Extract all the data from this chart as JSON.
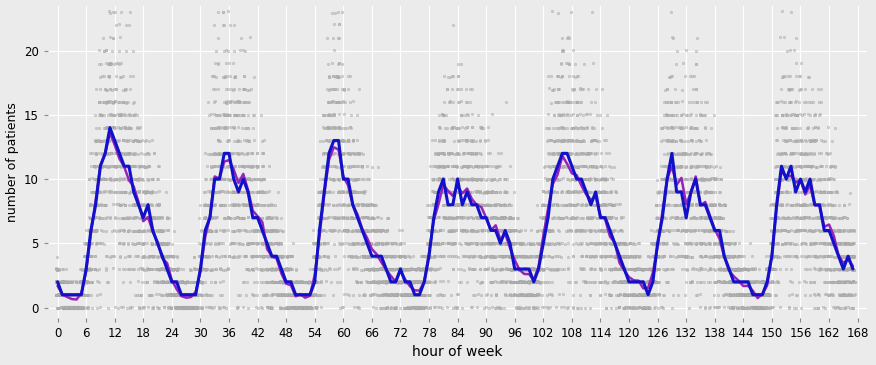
{
  "title": "",
  "xlabel": "hour of week",
  "ylabel": "number of patients",
  "xlim": [
    -2,
    170
  ],
  "ylim": [
    -0.8,
    23.5
  ],
  "yticks": [
    0,
    5,
    10,
    15,
    20
  ],
  "xticks": [
    0,
    6,
    12,
    18,
    24,
    30,
    36,
    42,
    48,
    54,
    60,
    66,
    72,
    78,
    84,
    90,
    96,
    102,
    108,
    114,
    120,
    126,
    132,
    138,
    144,
    150,
    156,
    162,
    168
  ],
  "background_color": "#EBEBEB",
  "grid_color": "#FFFFFF",
  "dot_color": "#BBBBBB",
  "dot_edge_color": "#999999",
  "median_color": "#1111CC",
  "mean_color": "#9922BB",
  "n_weeks": 65,
  "hours_per_week": 168,
  "seed": 42,
  "hourly_rates": [
    1.5,
    1.0,
    0.8,
    0.6,
    0.5,
    1.0,
    2.5,
    5.5,
    8.5,
    10.5,
    11.5,
    13.0,
    12.5,
    11.5,
    10.5,
    10.0,
    9.0,
    8.0,
    7.0,
    6.5,
    6.0,
    5.0,
    4.0,
    3.5,
    2.0,
    1.5,
    1.0,
    0.8,
    0.7,
    1.2,
    2.8,
    5.5,
    8.0,
    10.5,
    11.5,
    11.5,
    11.0,
    11.0,
    10.5,
    10.0,
    9.0,
    8.0,
    7.0,
    6.0,
    5.0,
    4.0,
    3.5,
    2.5,
    2.0,
    1.5,
    1.0,
    0.8,
    0.7,
    0.9,
    2.5,
    5.5,
    8.0,
    11.0,
    13.0,
    13.0,
    11.0,
    9.5,
    8.5,
    7.5,
    6.5,
    5.5,
    4.5,
    4.0,
    3.5,
    3.0,
    2.5,
    2.0,
    2.5,
    2.0,
    1.8,
    1.5,
    1.5,
    2.0,
    4.0,
    7.0,
    8.5,
    9.0,
    9.0,
    9.0,
    9.0,
    9.0,
    9.0,
    8.5,
    8.0,
    7.5,
    7.0,
    6.5,
    6.0,
    5.5,
    5.0,
    4.5,
    3.5,
    3.0,
    2.5,
    2.2,
    2.0,
    3.0,
    5.0,
    7.5,
    9.5,
    10.5,
    11.0,
    11.0,
    10.5,
    10.0,
    9.5,
    9.0,
    8.5,
    8.0,
    7.5,
    6.5,
    5.5,
    4.5,
    3.5,
    3.0,
    2.5,
    2.2,
    2.0,
    1.5,
    1.5,
    2.5,
    5.0,
    8.0,
    10.0,
    10.0,
    9.5,
    9.5,
    9.5,
    10.0,
    9.5,
    9.0,
    8.0,
    7.0,
    6.0,
    5.0,
    4.0,
    3.0,
    2.5,
    2.0,
    1.8,
    1.5,
    1.2,
    1.0,
    1.0,
    1.8,
    4.5,
    7.5,
    9.5,
    10.0,
    10.0,
    9.5,
    9.5,
    9.0,
    9.0,
    8.5,
    8.0,
    7.5,
    6.5,
    5.5,
    4.5,
    4.0,
    3.5,
    3.0
  ]
}
